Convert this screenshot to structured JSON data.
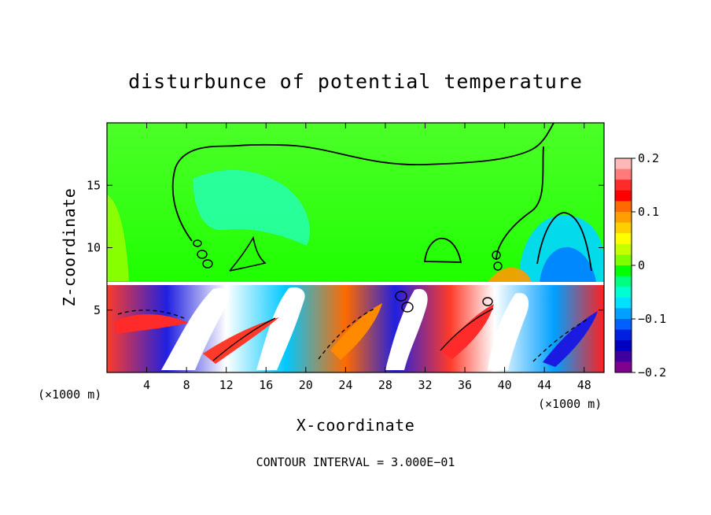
{
  "chart_data": {
    "type": "heatmap",
    "title": "disturbunce of potential temperature",
    "xlabel": "X-coordinate",
    "ylabel": "Z-coordinate",
    "x_units": "(×1000 m)",
    "x_units_right": "(×1000 m)",
    "xlim": [
      0,
      50
    ],
    "ylim": [
      0,
      20
    ],
    "x_ticks": [
      4,
      8,
      12,
      16,
      20,
      24,
      28,
      32,
      36,
      40,
      44,
      48
    ],
    "x_tick_labels": [
      "4",
      "8",
      "12",
      "16",
      "20",
      "24",
      "28",
      "32",
      "36",
      "40",
      "44",
      "48"
    ],
    "y_ticks": [
      5,
      10,
      15
    ],
    "y_tick_labels": [
      "5",
      "10",
      "15"
    ],
    "colorbar": {
      "range": [
        -0.2,
        0.2
      ],
      "tick_values": [
        0.2,
        0.1,
        0,
        -0.1,
        -0.2
      ],
      "tick_labels": [
        "0.2",
        "0.1",
        "0",
        "−0.1",
        "−0.2"
      ],
      "colors": [
        "#ffb8b8",
        "#ff7a7a",
        "#ff2a2a",
        "#ff0000",
        "#ff6a00",
        "#ffa000",
        "#ffd000",
        "#ffff00",
        "#c8ff00",
        "#80ff00",
        "#00ff00",
        "#00ff80",
        "#00ffd0",
        "#00e0ff",
        "#00a0ff",
        "#0060ff",
        "#0020e0",
        "#0000c0",
        "#4000a0",
        "#800090"
      ]
    },
    "inversion_height": 7.2,
    "footer": "CONTOUR INTERVAL = 3.000E−01"
  }
}
